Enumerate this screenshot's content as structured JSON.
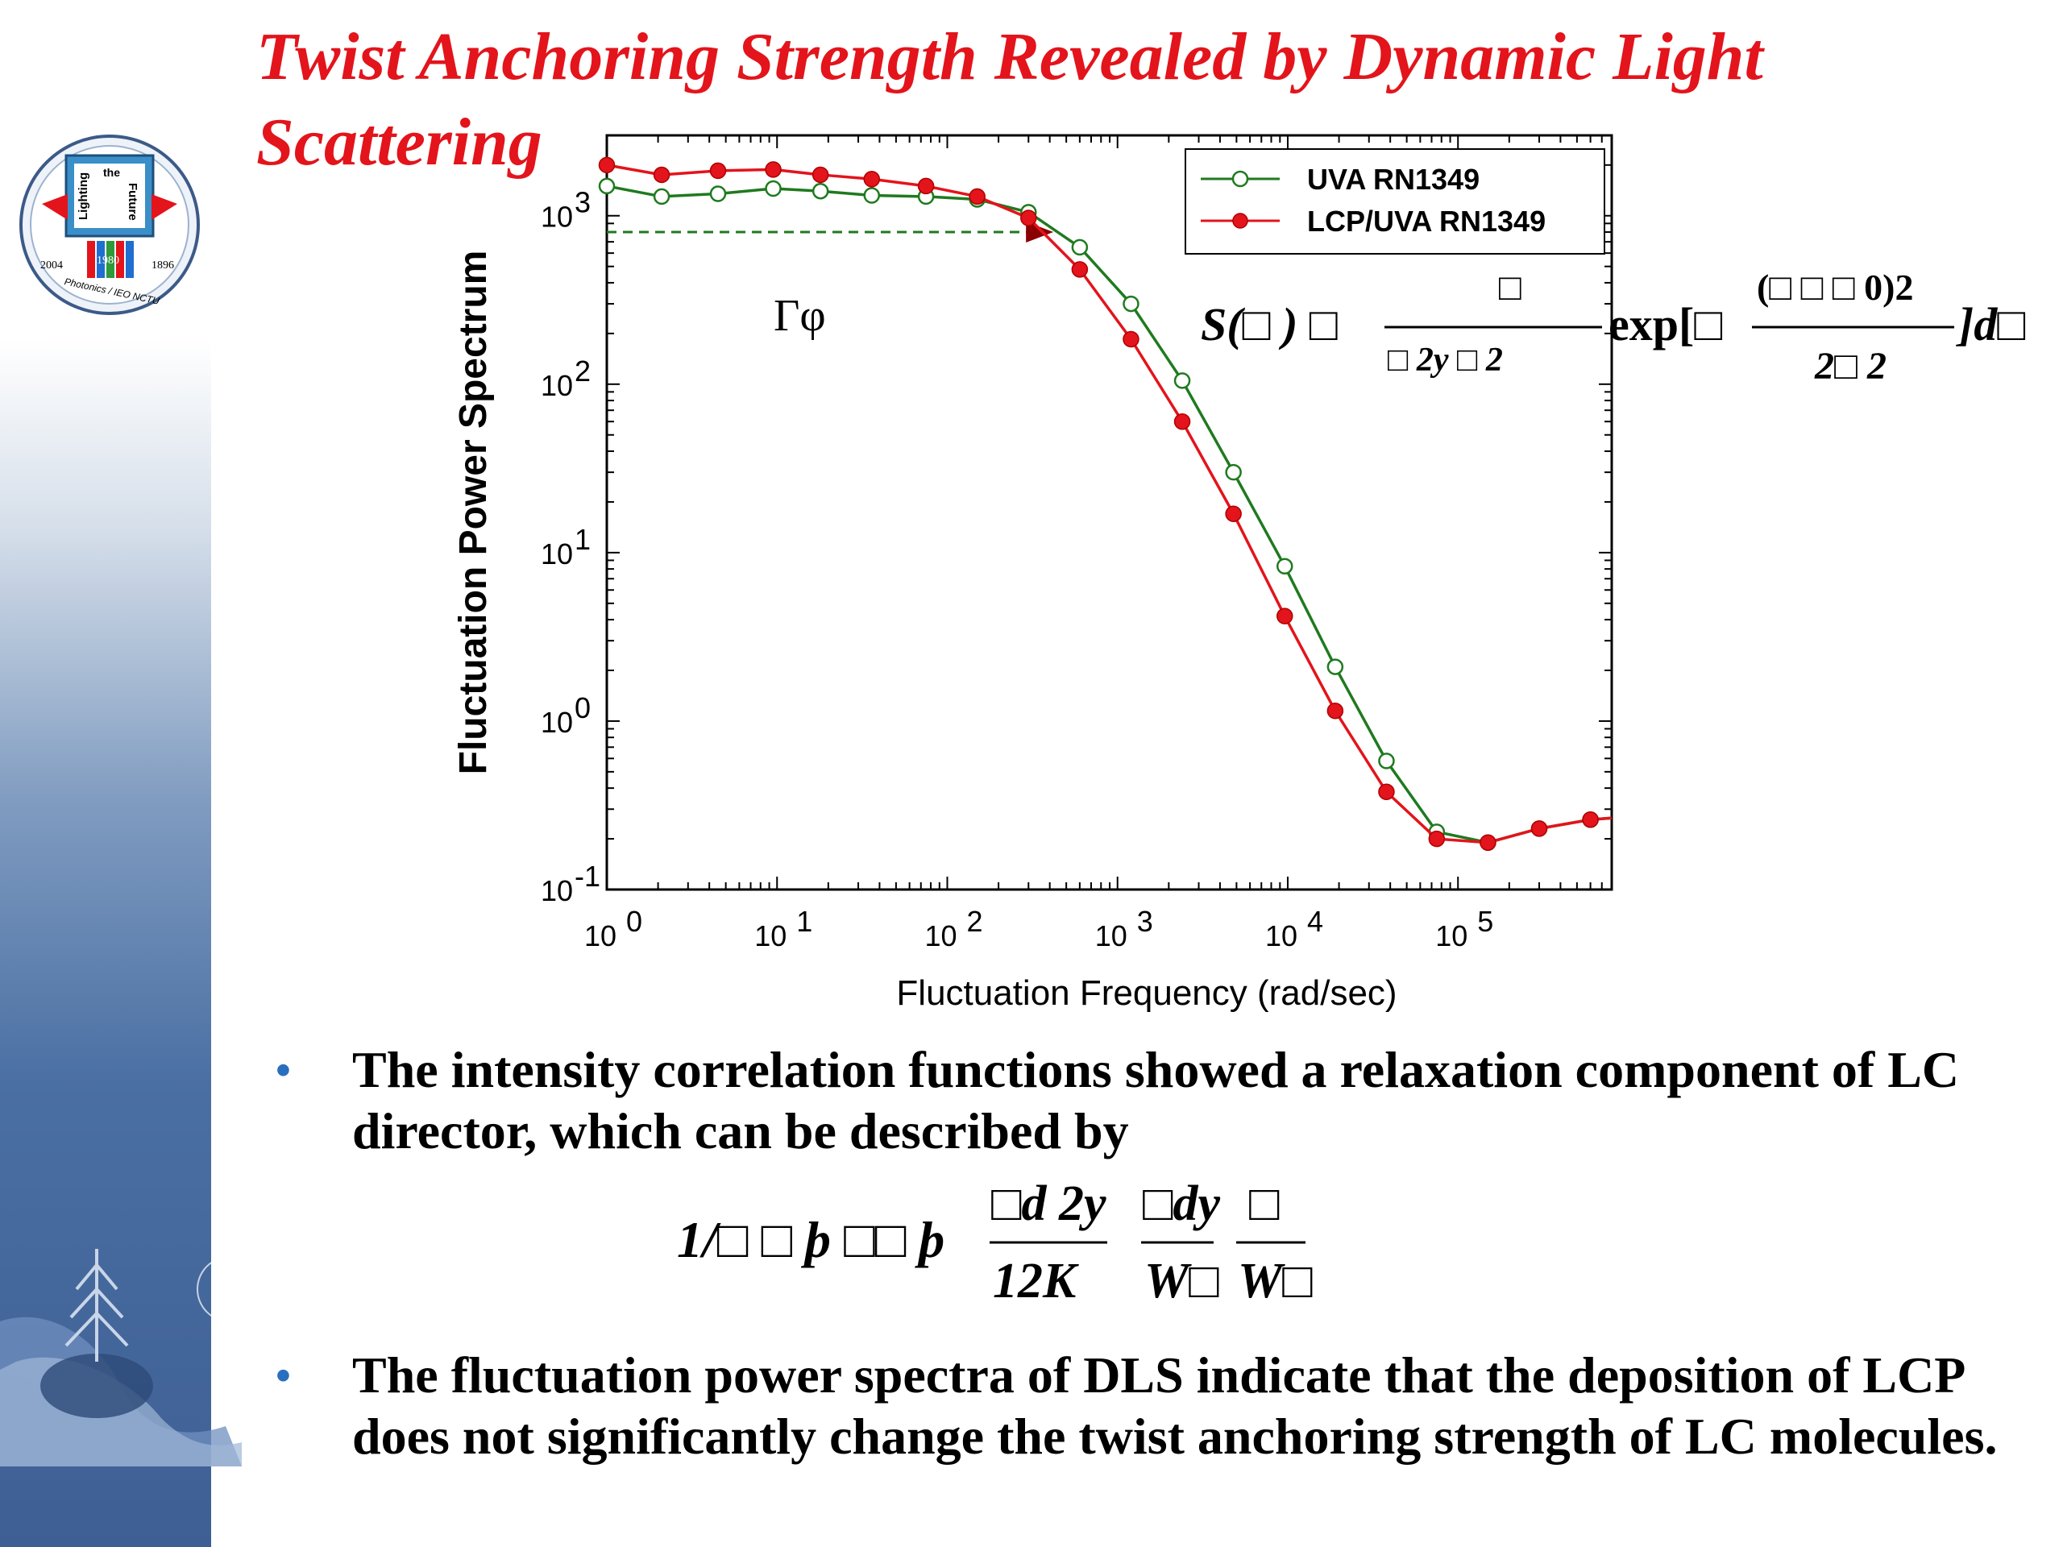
{
  "title": "Twist Anchoring Strength Revealed by Dynamic Light Scattering",
  "logo": {
    "words": [
      "Lighting",
      "the",
      "Future"
    ],
    "years": [
      "2004",
      "1980",
      "1896"
    ],
    "org": "Photonics / IEO NCTU"
  },
  "annotation": "Γφ",
  "equation1": {
    "lhs": "S(□ ) □",
    "term1_num": "□",
    "term1_den": "□ 2y     □ 2",
    "mid": "exp[□",
    "term2_num": "(□ □ □ 0)2",
    "term2_den": "2□ 2",
    "end": "]d□"
  },
  "equation2": {
    "lhs": "1/□ □ þ   □□ þ",
    "f1_num": "□d 2y",
    "f1_den": "12K",
    "f2_num": "□dy",
    "f2_den": "W□",
    "f3_num": "□",
    "f3_den": "W□"
  },
  "bullets": [
    "The intensity correlation functions showed a relaxation component of LC director, which can be described by",
    "The fluctuation power spectra of DLS indicate that the deposition of LCP does not significantly change the twist anchoring strength of LC molecules."
  ],
  "colors": {
    "title": "#e3141b",
    "series_green": "#1f7a1f",
    "series_red": "#e3141b",
    "bullet_dot": "#2a6fbf"
  },
  "chart_data": {
    "type": "line",
    "xlabel": "Fluctuation Frequency (rad/sec)",
    "ylabel": "Fluctuation Power Spectrum",
    "xscale": "log",
    "yscale": "log",
    "xlim": [
      1,
      800000
    ],
    "ylim": [
      0.1,
      3000
    ],
    "x_ticks": [
      {
        "value": 1,
        "label": "10",
        "exp": "0"
      },
      {
        "value": 10,
        "label": "10",
        "exp": "1"
      },
      {
        "value": 100,
        "label": "10",
        "exp": "2"
      },
      {
        "value": 1000,
        "label": "10",
        "exp": "3"
      },
      {
        "value": 10000,
        "label": "10",
        "exp": "4"
      },
      {
        "value": 100000,
        "label": "10",
        "exp": "5"
      }
    ],
    "y_ticks": [
      {
        "value": 0.1,
        "label": "10",
        "exp": "-1"
      },
      {
        "value": 1,
        "label": "10",
        "exp": "0"
      },
      {
        "value": 10,
        "label": "10",
        "exp": "1"
      },
      {
        "value": 100,
        "label": "10",
        "exp": "2"
      },
      {
        "value": 1000,
        "label": "10",
        "exp": "3"
      }
    ],
    "legend_position": "top-right",
    "series": [
      {
        "name": "UVA RN1349",
        "marker": "open-circle",
        "color": "#1f7a1f",
        "x": [
          1,
          2.1,
          4.5,
          9.5,
          18,
          36,
          75,
          150,
          300,
          600,
          1200,
          2400,
          4800,
          9600,
          19000,
          38000,
          75000,
          150000,
          300000,
          600000
        ],
        "y": [
          1500,
          1300,
          1350,
          1450,
          1400,
          1320,
          1300,
          1250,
          1050,
          650,
          300,
          105,
          30,
          8.3,
          2.1,
          0.58,
          0.22,
          0.19,
          0.23,
          0.26
        ]
      },
      {
        "name": "LCP/UVA RN1349",
        "marker": "filled-circle",
        "color": "#e3141b",
        "x": [
          1,
          2.1,
          4.5,
          9.5,
          18,
          36,
          75,
          150,
          300,
          600,
          1200,
          2400,
          4800,
          9600,
          19000,
          38000,
          75000,
          150000,
          300000,
          600000
        ],
        "y": [
          2000,
          1750,
          1850,
          1880,
          1750,
          1650,
          1500,
          1300,
          970,
          480,
          185,
          60,
          17,
          4.2,
          1.15,
          0.38,
          0.2,
          0.19,
          0.23,
          0.26
        ]
      }
    ],
    "guide": {
      "y": 800,
      "x_from": 1,
      "x_to": 420
    }
  }
}
